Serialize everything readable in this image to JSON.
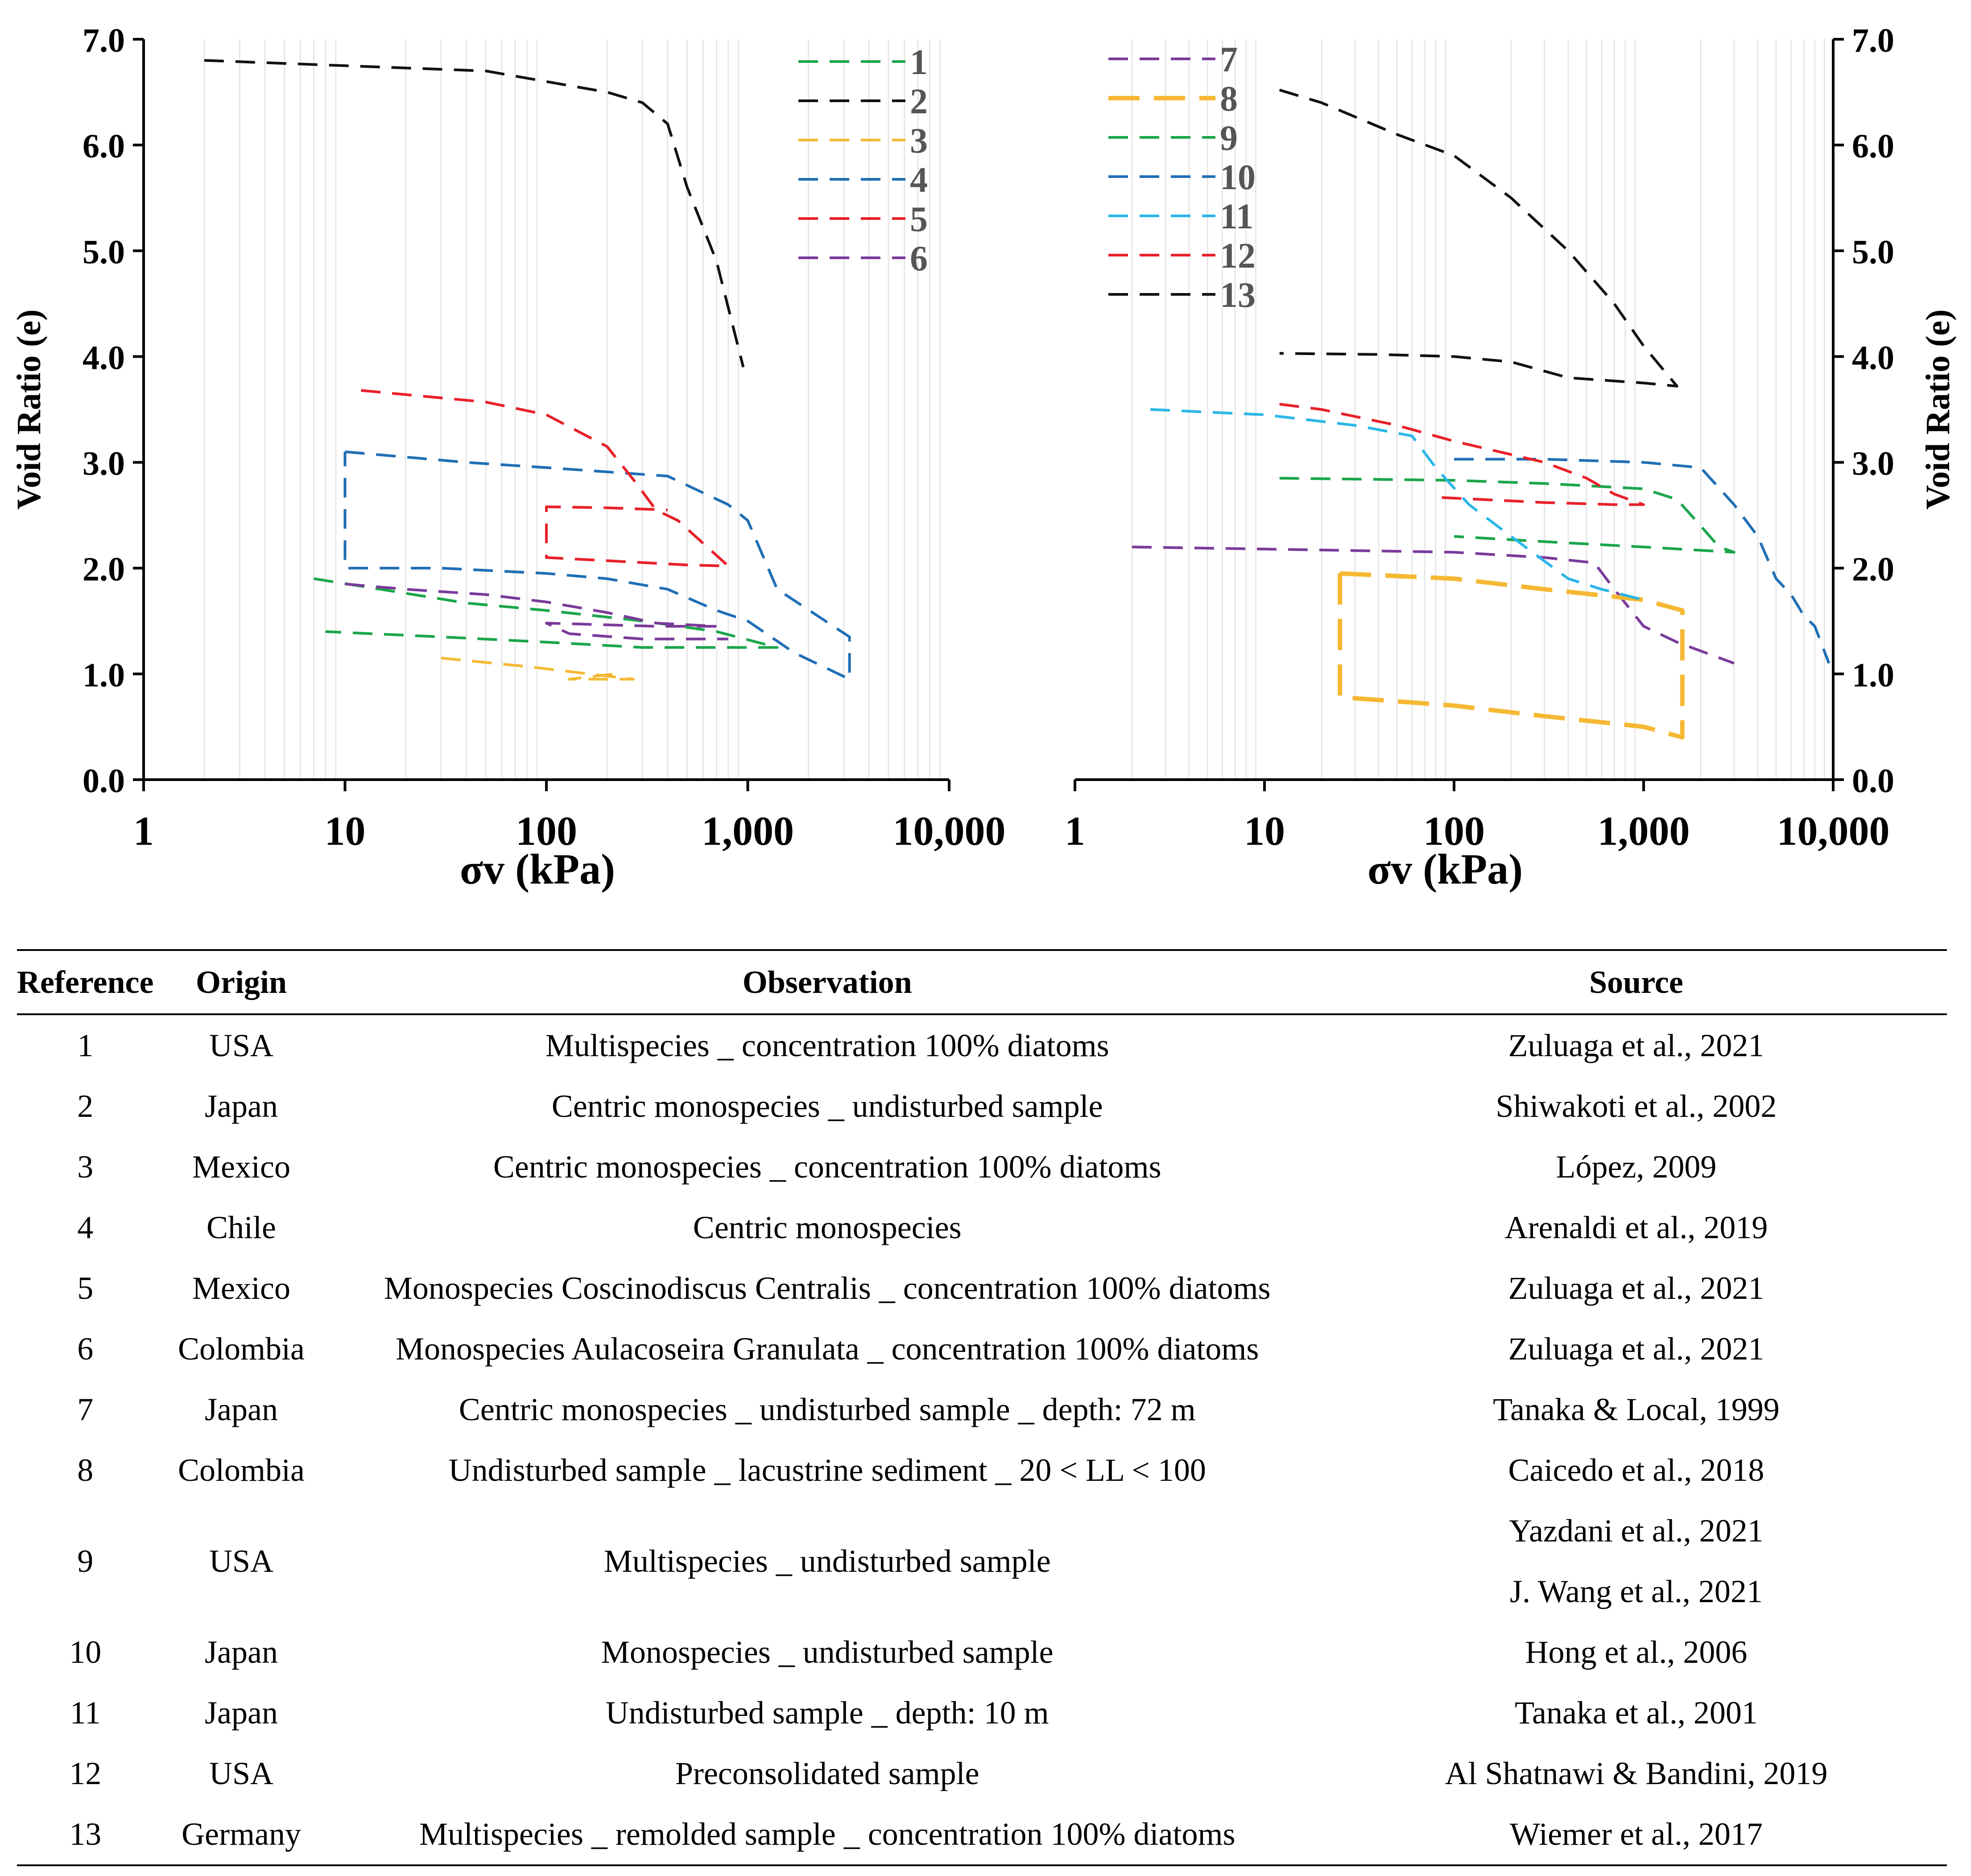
{
  "charts": {
    "left": {
      "xlabel": "σv (kPa)",
      "ylabel": "Void Ratio (e)",
      "xticks": [
        "1",
        "10",
        "100",
        "1,000",
        "10,000"
      ],
      "yticks": [
        "0.0",
        "1.0",
        "2.0",
        "3.0",
        "4.0",
        "5.0",
        "6.0",
        "7.0"
      ],
      "legend": [
        "1",
        "2",
        "3",
        "4",
        "5",
        "6"
      ]
    },
    "right": {
      "xlabel": "σv (kPa)",
      "ylabel": "Void Ratio (e)",
      "xticks": [
        "1",
        "10",
        "100",
        "1,000",
        "10,000"
      ],
      "yticks": [
        "0.0",
        "1.0",
        "2.0",
        "3.0",
        "4.0",
        "5.0",
        "6.0",
        "7.0"
      ],
      "legend": [
        "7",
        "8",
        "9",
        "10",
        "11",
        "12",
        "13"
      ]
    }
  },
  "chart_data": [
    {
      "type": "line",
      "xscale": "log",
      "xlim": [
        1,
        10000
      ],
      "ylim": [
        0,
        7
      ],
      "xlabel": "σv (kPa)",
      "ylabel": "Void Ratio (e)",
      "grid": "vertical minor",
      "legend_position": "top-right",
      "series": [
        {
          "name": "1",
          "color": "#1aa64a",
          "points": [
            [
              7,
              1.9
            ],
            [
              15,
              1.8
            ],
            [
              40,
              1.67
            ],
            [
              100,
              1.6
            ],
            [
              300,
              1.5
            ],
            [
              700,
              1.4
            ],
            [
              1400,
              1.25
            ],
            [
              700,
              1.25
            ],
            [
              300,
              1.25
            ],
            [
              100,
              1.3
            ],
            [
              30,
              1.35
            ],
            [
              8,
              1.4
            ]
          ]
        },
        {
          "name": "2",
          "color": "#111111",
          "points": [
            [
              2,
              6.8
            ],
            [
              10,
              6.75
            ],
            [
              50,
              6.7
            ],
            [
              100,
              6.6
            ],
            [
              200,
              6.5
            ],
            [
              300,
              6.4
            ],
            [
              400,
              6.2
            ],
            [
              500,
              5.6
            ],
            [
              700,
              4.9
            ],
            [
              950,
              3.9
            ]
          ]
        },
        {
          "name": "3",
          "color": "#f5b833",
          "points": [
            [
              30,
              1.15
            ],
            [
              80,
              1.07
            ],
            [
              200,
              0.98
            ],
            [
              270,
              0.95
            ],
            [
              130,
              0.95
            ],
            [
              220,
              1.0
            ]
          ]
        },
        {
          "name": "4",
          "color": "#1f6fb5",
          "points": [
            [
              10,
              3.1
            ],
            [
              40,
              3.0
            ],
            [
              100,
              2.95
            ],
            [
              400,
              2.87
            ],
            [
              800,
              2.6
            ],
            [
              1000,
              2.45
            ],
            [
              1400,
              1.8
            ],
            [
              3200,
              1.35
            ],
            [
              3200,
              0.95
            ],
            [
              1700,
              1.2
            ],
            [
              1000,
              1.5
            ],
            [
              700,
              1.6
            ],
            [
              400,
              1.8
            ],
            [
              200,
              1.9
            ],
            [
              100,
              1.95
            ],
            [
              30,
              2.0
            ],
            [
              10,
              2.0
            ],
            [
              10,
              3.1
            ]
          ]
        },
        {
          "name": "5",
          "color": "#e8202a",
          "points": [
            [
              12,
              3.68
            ],
            [
              50,
              3.57
            ],
            [
              100,
              3.45
            ],
            [
              200,
              3.15
            ],
            [
              280,
              2.8
            ],
            [
              350,
              2.55
            ],
            [
              450,
              2.45
            ],
            [
              800,
              2.02
            ],
            [
              500,
              2.03
            ],
            [
              100,
              2.1
            ],
            [
              100,
              2.58
            ],
            [
              200,
              2.57
            ],
            [
              400,
              2.55
            ]
          ]
        },
        {
          "name": "6",
          "color": "#7b3a9a",
          "points": [
            [
              10,
              1.85
            ],
            [
              20,
              1.8
            ],
            [
              50,
              1.75
            ],
            [
              100,
              1.68
            ],
            [
              200,
              1.58
            ],
            [
              350,
              1.48
            ],
            [
              700,
              1.45
            ],
            [
              350,
              1.45
            ],
            [
              100,
              1.48
            ],
            [
              130,
              1.38
            ],
            [
              300,
              1.33
            ],
            [
              800,
              1.33
            ]
          ]
        }
      ]
    },
    {
      "type": "line",
      "xscale": "log",
      "xlim": [
        1,
        10000
      ],
      "ylim": [
        0,
        7
      ],
      "xlabel": "σv (kPa)",
      "ylabel": "Void Ratio (e)",
      "grid": "vertical minor",
      "legend_position": "top-left",
      "series": [
        {
          "name": "7",
          "color": "#7b3a9a",
          "points": [
            [
              2,
              2.2
            ],
            [
              10,
              2.18
            ],
            [
              100,
              2.15
            ],
            [
              300,
              2.1
            ],
            [
              550,
              2.05
            ],
            [
              700,
              1.8
            ],
            [
              1000,
              1.45
            ],
            [
              1500,
              1.3
            ],
            [
              3000,
              1.1
            ]
          ]
        },
        {
          "name": "8",
          "color": "#f5b833",
          "points": [
            [
              25,
              1.95
            ],
            [
              100,
              1.9
            ],
            [
              300,
              1.8
            ],
            [
              1000,
              1.7
            ],
            [
              1600,
              1.6
            ],
            [
              1600,
              0.4
            ],
            [
              1000,
              0.5
            ],
            [
              300,
              0.6
            ],
            [
              100,
              0.7
            ],
            [
              25,
              0.78
            ],
            [
              25,
              1.95
            ]
          ]
        },
        {
          "name": "9",
          "color": "#1aa64a",
          "points": [
            [
              12,
              2.85
            ],
            [
              100,
              2.83
            ],
            [
              300,
              2.8
            ],
            [
              1000,
              2.75
            ],
            [
              1500,
              2.65
            ],
            [
              2000,
              2.4
            ],
            [
              2500,
              2.2
            ],
            [
              3000,
              2.15
            ],
            [
              1000,
              2.2
            ],
            [
              300,
              2.25
            ],
            [
              100,
              2.3
            ]
          ]
        },
        {
          "name": "10",
          "color": "#1f6fb5",
          "points": [
            [
              100,
              3.03
            ],
            [
              300,
              3.03
            ],
            [
              1000,
              3.0
            ],
            [
              2000,
              2.95
            ],
            [
              3000,
              2.6
            ],
            [
              4000,
              2.3
            ],
            [
              5000,
              1.9
            ],
            [
              6000,
              1.75
            ],
            [
              7000,
              1.55
            ],
            [
              8000,
              1.45
            ],
            [
              9500,
              1.1
            ]
          ]
        },
        {
          "name": "11",
          "color": "#2bb6e8",
          "points": [
            [
              2.5,
              3.5
            ],
            [
              10,
              3.45
            ],
            [
              30,
              3.35
            ],
            [
              60,
              3.25
            ],
            [
              80,
              2.95
            ],
            [
              120,
              2.6
            ],
            [
              200,
              2.3
            ],
            [
              400,
              1.9
            ],
            [
              600,
              1.8
            ],
            [
              1000,
              1.7
            ]
          ]
        },
        {
          "name": "12",
          "color": "#e8202a",
          "points": [
            [
              12,
              3.55
            ],
            [
              20,
              3.5
            ],
            [
              50,
              3.35
            ],
            [
              100,
              3.2
            ],
            [
              300,
              3.0
            ],
            [
              500,
              2.85
            ],
            [
              700,
              2.7
            ],
            [
              1000,
              2.6
            ],
            [
              700,
              2.6
            ],
            [
              300,
              2.62
            ],
            [
              80,
              2.67
            ]
          ]
        },
        {
          "name": "13",
          "color": "#111111",
          "points": [
            [
              12,
              6.52
            ],
            [
              20,
              6.4
            ],
            [
              50,
              6.1
            ],
            [
              100,
              5.9
            ],
            [
              200,
              5.5
            ],
            [
              400,
              5.0
            ],
            [
              700,
              4.5
            ],
            [
              1000,
              4.1
            ],
            [
              1500,
              3.72
            ],
            [
              1000,
              3.75
            ],
            [
              400,
              3.8
            ],
            [
              200,
              3.95
            ],
            [
              100,
              4.0
            ],
            [
              40,
              4.02
            ],
            [
              12,
              4.03
            ]
          ]
        }
      ]
    }
  ],
  "table": {
    "headers": [
      "Reference",
      "Origin",
      "Observation",
      "Source"
    ],
    "rows": [
      {
        "ref": "1",
        "origin": "USA",
        "obs": "Multispecies _ concentration 100% diatoms",
        "source": "Zuluaga et al., 2021"
      },
      {
        "ref": "2",
        "origin": "Japan",
        "obs": "Centric monospecies _ undisturbed sample",
        "source": "Shiwakoti et al., 2002"
      },
      {
        "ref": "3",
        "origin": "Mexico",
        "obs": "Centric monospecies _ concentration 100% diatoms",
        "source": "López, 2009"
      },
      {
        "ref": "4",
        "origin": "Chile",
        "obs": "Centric monospecies",
        "source": "Arenaldi et al., 2019"
      },
      {
        "ref": "5",
        "origin": "Mexico",
        "obs": "Monospecies Coscinodiscus Centralis _ concentration 100% diatoms",
        "source": "Zuluaga et al., 2021"
      },
      {
        "ref": "6",
        "origin": "Colombia",
        "obs": "Monospecies Aulacoseira Granulata _ concentration 100% diatoms",
        "source": "Zuluaga et al., 2021"
      },
      {
        "ref": "7",
        "origin": "Japan",
        "obs": "Centric monospecies _ undisturbed sample _ depth: 72 m",
        "source": "Tanaka & Local, 1999"
      },
      {
        "ref": "8",
        "origin": "Colombia",
        "obs": "Undisturbed sample _ lacustrine sediment _ 20 < LL < 100",
        "source": "Caicedo et al., 2018"
      },
      {
        "ref": "9",
        "origin": "USA",
        "obs": "Multispecies _ undisturbed sample",
        "source": "Yazdani et al., 2021",
        "source2": "J. Wang et al., 2021"
      },
      {
        "ref": "10",
        "origin": "Japan",
        "obs": "Monospecies _ undisturbed sample",
        "source": "Hong et al., 2006"
      },
      {
        "ref": "11",
        "origin": "Japan",
        "obs": "Undisturbed sample _ depth: 10 m",
        "source": "Tanaka et al., 2001"
      },
      {
        "ref": "12",
        "origin": "USA",
        "obs": "Preconsolidated sample",
        "source": "Al Shatnawi & Bandini, 2019"
      },
      {
        "ref": "13",
        "origin": "Germany",
        "obs": "Multispecies _ remolded sample _ concentration 100% diatoms",
        "source": "Wiemer et al., 2017"
      }
    ]
  }
}
